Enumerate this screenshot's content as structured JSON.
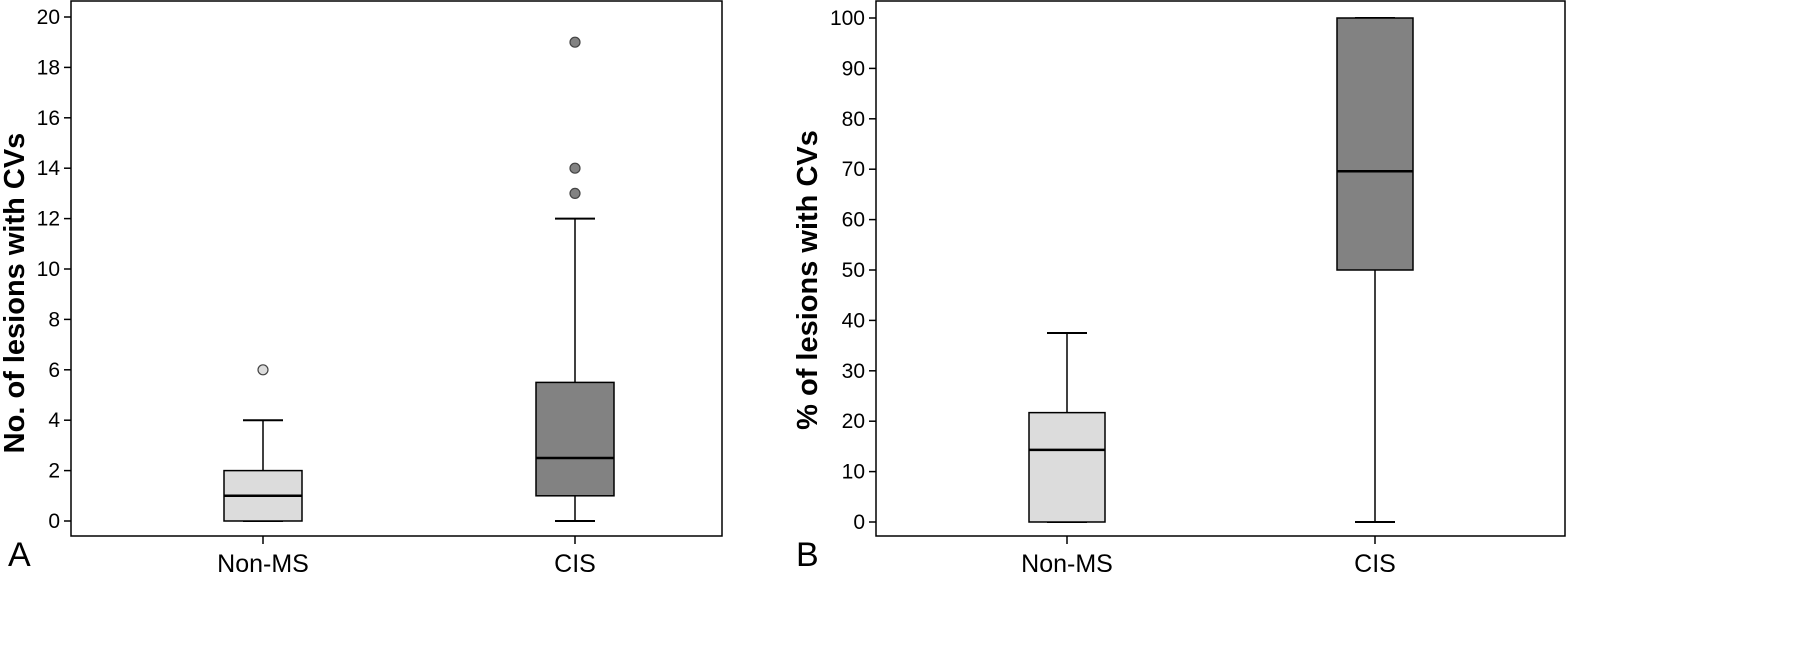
{
  "chart_data": [
    {
      "type": "box",
      "panel_label": "A",
      "ylabel": "No. of lesions with CVs",
      "xlabel": "",
      "ylim": [
        0,
        20
      ],
      "yticks": [
        "0",
        "2",
        "4",
        "6",
        "8",
        "10",
        "12",
        "14",
        "16",
        "18",
        "20"
      ],
      "categories": [
        "Non-MS",
        "CIS"
      ],
      "boxes": [
        {
          "category": "Non-MS",
          "whisker_low": 0,
          "q1": 0,
          "median": 1,
          "q3": 2,
          "whisker_high": 4,
          "outliers": [
            6
          ],
          "fill": "#dcdcdc"
        },
        {
          "category": "CIS",
          "whisker_low": 0,
          "q1": 1,
          "median": 2.5,
          "q3": 5.5,
          "whisker_high": 12,
          "outliers": [
            13,
            14,
            19
          ],
          "fill": "#828282"
        }
      ],
      "grid": false,
      "legend": "none"
    },
    {
      "type": "box",
      "panel_label": "B",
      "ylabel": "% of lesions with CVs",
      "xlabel": "",
      "ylim": [
        0,
        100
      ],
      "yticks": [
        "0",
        "10",
        "20",
        "30",
        "40",
        "50",
        "60",
        "70",
        "80",
        "90",
        "100"
      ],
      "categories": [
        "Non-MS",
        "CIS"
      ],
      "boxes": [
        {
          "category": "Non-MS",
          "whisker_low": 0,
          "q1": 0,
          "median": 14.3,
          "q3": 21.7,
          "whisker_high": 37.5,
          "outliers": [],
          "fill": "#dcdcdc"
        },
        {
          "category": "CIS",
          "whisker_low": 0,
          "q1": 50,
          "median": 69.6,
          "q3": 100,
          "whisker_high": 100,
          "outliers": [],
          "fill": "#828282"
        }
      ],
      "grid": false,
      "legend": "none"
    }
  ]
}
